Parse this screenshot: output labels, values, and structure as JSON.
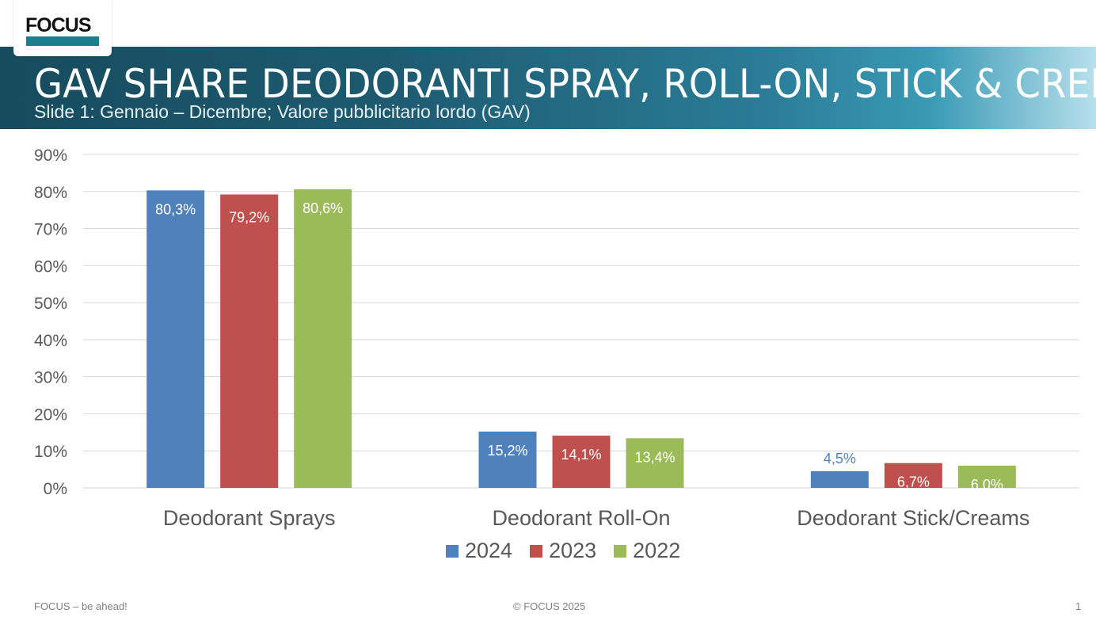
{
  "logo": {
    "text": "FOCUS"
  },
  "header": {
    "title": "GAV SHARE DEODORANTI SPRAY, ROLL-ON, STICK & CREME",
    "subtitle": "Slide 1: Gennaio – Dicembre; Valore pubblicitario lordo (GAV)"
  },
  "chart_data": {
    "type": "bar",
    "categories": [
      "Deodorant Sprays",
      "Deodorant Roll-On",
      "Deodorant Stick/Creams"
    ],
    "series": [
      {
        "name": "2024",
        "color": "#4f81bd",
        "values": [
          80.3,
          15.2,
          4.5
        ],
        "labels": [
          "80,3%",
          "15,2%",
          "4,5%"
        ]
      },
      {
        "name": "2023",
        "color": "#c0504d",
        "values": [
          79.2,
          14.1,
          6.7
        ],
        "labels": [
          "79,2%",
          "14,1%",
          "6,7%"
        ]
      },
      {
        "name": "2022",
        "color": "#9bbb59",
        "values": [
          80.6,
          13.4,
          6.0
        ],
        "labels": [
          "80,6%",
          "13,4%",
          "6,0%"
        ]
      }
    ],
    "ylim": [
      0,
      90
    ],
    "yticks": [
      "0%",
      "10%",
      "20%",
      "30%",
      "40%",
      "50%",
      "60%",
      "70%",
      "80%",
      "90%"
    ],
    "grid": true,
    "legend": "bottom"
  },
  "footer": {
    "left": "FOCUS – be ahead!",
    "center": "© FOCUS 2025",
    "page": "1"
  }
}
